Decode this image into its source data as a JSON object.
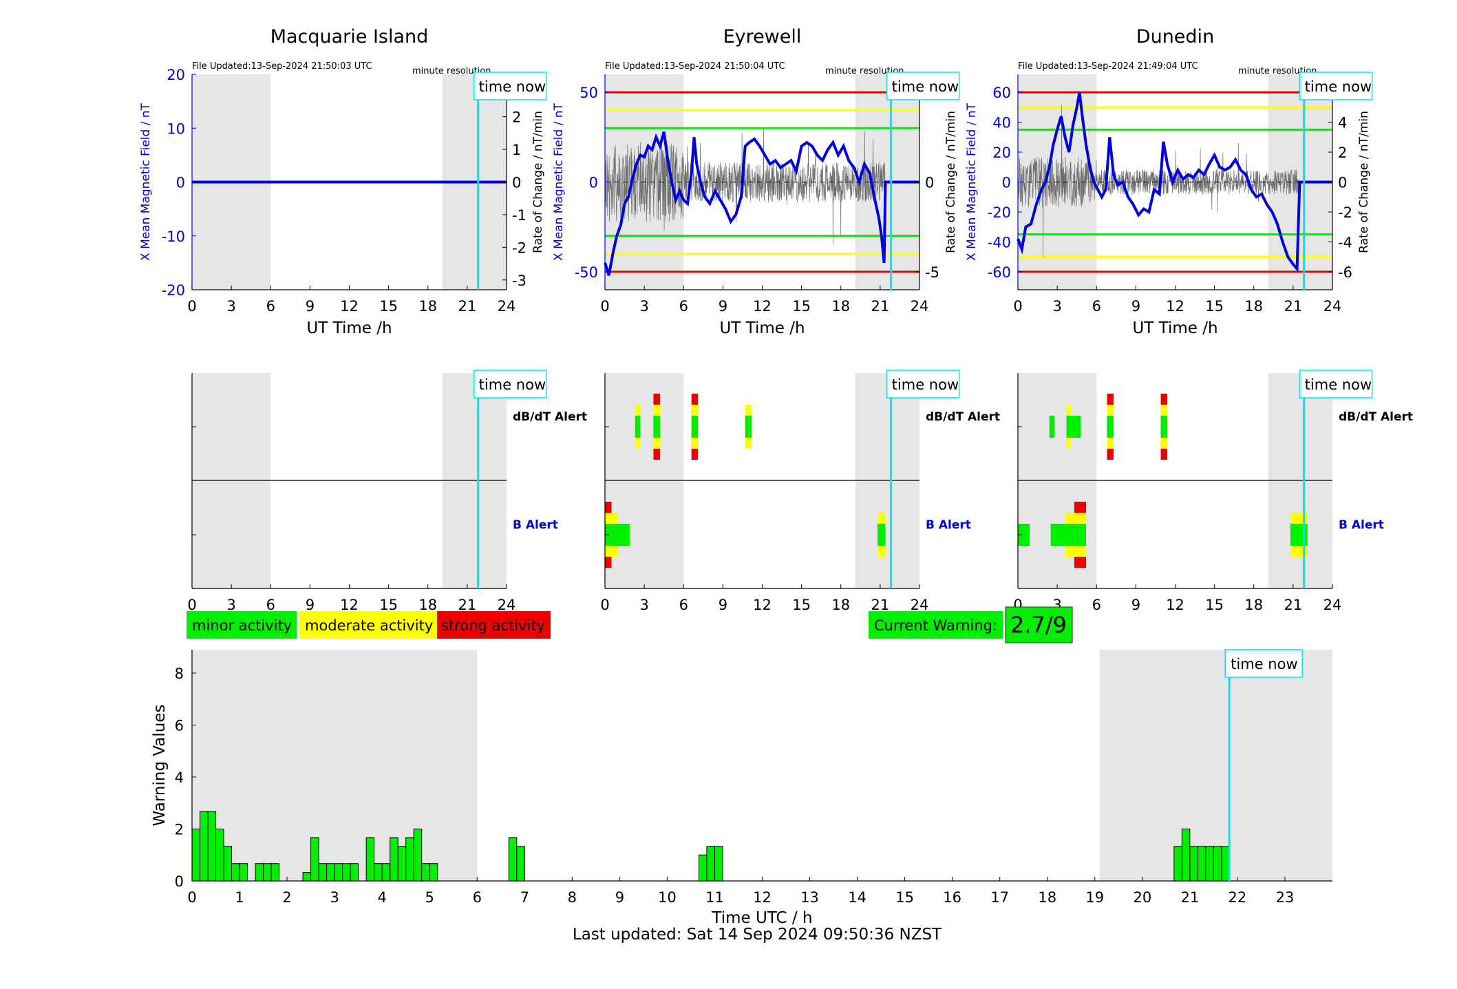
{
  "colors": {
    "shade": "#e6e6e6",
    "bfield": "#0000e6",
    "now_line": "#00e5ee",
    "green": "#00ee00",
    "yellow": "#ffff00",
    "red": "#ee0000",
    "bar_edge": "#000000",
    "rate_trace": "#6e6e6e"
  },
  "time_now_label": "time now",
  "time_now_hour": 21.83,
  "night_shading_hours": [
    [
      0,
      6
    ],
    [
      19.1,
      24
    ]
  ],
  "panels": [
    {
      "station": "Macquarie Island",
      "file_updated": "File Updated:13-Sep-2024 21:50:03 UTC",
      "resolution": "minute resolution",
      "left_ylabel": "X Mean Magnetic Field / nT",
      "right_ylabel": "Rate of Change / nT/min",
      "xlabel": "UT Time /h",
      "ylim": [
        -20,
        20
      ],
      "yticks": [
        -20,
        -10,
        0,
        10,
        20
      ],
      "rate_ylim": [
        -3.3,
        3.3
      ],
      "rate_yticks": [
        -3,
        -2,
        -1,
        0,
        1,
        2,
        3
      ],
      "thresholds": [],
      "b_trace": [
        [
          0,
          0
        ],
        [
          24,
          0
        ]
      ],
      "rate_noise": 0
    },
    {
      "station": "Eyrewell",
      "file_updated": "File Updated:13-Sep-2024 21:50:04 UTC",
      "resolution": "minute resolution",
      "left_ylabel": "X Mean Magnetic Field / nT",
      "right_ylabel": "Rate of Change / nT/min",
      "xlabel": "UT Time /h",
      "ylim": [
        -60,
        60
      ],
      "yticks": [
        -50,
        0,
        50
      ],
      "rate_ylim": [
        -6,
        6
      ],
      "rate_yticks": [
        -5,
        0,
        5
      ],
      "thresholds": [
        {
          "value": 50,
          "color": "red"
        },
        {
          "value": 40,
          "color": "yellow"
        },
        {
          "value": 30,
          "color": "green"
        },
        {
          "value": -30,
          "color": "green"
        },
        {
          "value": -40,
          "color": "yellow"
        },
        {
          "value": -50,
          "color": "red"
        }
      ],
      "b_trace": [
        [
          0,
          -45
        ],
        [
          0.3,
          -52
        ],
        [
          0.6,
          -40
        ],
        [
          0.9,
          -30
        ],
        [
          1.2,
          -24
        ],
        [
          1.5,
          -12
        ],
        [
          1.8,
          -8
        ],
        [
          2.1,
          2
        ],
        [
          2.4,
          10
        ],
        [
          2.7,
          15
        ],
        [
          3.0,
          14
        ],
        [
          3.3,
          20
        ],
        [
          3.6,
          18
        ],
        [
          3.9,
          25
        ],
        [
          4.2,
          20
        ],
        [
          4.5,
          28
        ],
        [
          4.8,
          12
        ],
        [
          5.1,
          0
        ],
        [
          5.4,
          -10
        ],
        [
          5.7,
          -5
        ],
        [
          6.0,
          -10
        ],
        [
          6.3,
          -12
        ],
        [
          6.6,
          5
        ],
        [
          6.8,
          25
        ],
        [
          7.0,
          10
        ],
        [
          7.3,
          0
        ],
        [
          7.6,
          -8
        ],
        [
          8.0,
          -12
        ],
        [
          8.4,
          -5
        ],
        [
          8.8,
          -10
        ],
        [
          9.2,
          -15
        ],
        [
          9.6,
          -22
        ],
        [
          10.0,
          -18
        ],
        [
          10.4,
          -8
        ],
        [
          10.7,
          20
        ],
        [
          11.0,
          22
        ],
        [
          11.4,
          24
        ],
        [
          11.8,
          20
        ],
        [
          12.2,
          15
        ],
        [
          12.6,
          10
        ],
        [
          13.0,
          12
        ],
        [
          13.4,
          8
        ],
        [
          13.8,
          10
        ],
        [
          14.2,
          12
        ],
        [
          14.6,
          6
        ],
        [
          15.0,
          20
        ],
        [
          15.4,
          22
        ],
        [
          15.8,
          20
        ],
        [
          16.2,
          15
        ],
        [
          16.6,
          12
        ],
        [
          17.0,
          18
        ],
        [
          17.4,
          22
        ],
        [
          17.8,
          15
        ],
        [
          18.2,
          20
        ],
        [
          18.6,
          12
        ],
        [
          19.0,
          8
        ],
        [
          19.4,
          0
        ],
        [
          19.8,
          10
        ],
        [
          20.2,
          5
        ],
        [
          20.6,
          -10
        ],
        [
          20.9,
          -20
        ],
        [
          21.1,
          -30
        ],
        [
          21.3,
          -45
        ],
        [
          21.4,
          0
        ],
        [
          24,
          0
        ]
      ],
      "rate_noise": 1.6
    },
    {
      "station": "Dunedin",
      "file_updated": "File Updated:13-Sep-2024 21:49:04 UTC",
      "resolution": "minute resolution",
      "left_ylabel": "X Mean Magnetic Field / nT",
      "right_ylabel": "Rate of Change / nT/min",
      "xlabel": "UT Time /h",
      "ylim": [
        -72,
        72
      ],
      "yticks": [
        -60,
        -40,
        -20,
        0,
        20,
        40,
        60
      ],
      "rate_ylim": [
        -7.2,
        7.2
      ],
      "rate_yticks": [
        -6,
        -4,
        -2,
        0,
        2,
        4,
        6
      ],
      "thresholds": [
        {
          "value": 60,
          "color": "red"
        },
        {
          "value": 50,
          "color": "yellow"
        },
        {
          "value": 35,
          "color": "green"
        },
        {
          "value": -35,
          "color": "green"
        },
        {
          "value": -50,
          "color": "yellow"
        },
        {
          "value": -60,
          "color": "red"
        }
      ],
      "b_trace": [
        [
          0,
          -38
        ],
        [
          0.3,
          -45
        ],
        [
          0.6,
          -30
        ],
        [
          1.0,
          -28
        ],
        [
          1.4,
          -15
        ],
        [
          1.8,
          -5
        ],
        [
          2.1,
          0
        ],
        [
          2.4,
          10
        ],
        [
          2.7,
          25
        ],
        [
          3.0,
          35
        ],
        [
          3.3,
          44
        ],
        [
          3.6,
          30
        ],
        [
          3.9,
          20
        ],
        [
          4.2,
          38
        ],
        [
          4.5,
          50
        ],
        [
          4.7,
          60
        ],
        [
          4.9,
          45
        ],
        [
          5.2,
          25
        ],
        [
          5.5,
          10
        ],
        [
          5.8,
          0
        ],
        [
          6.1,
          -5
        ],
        [
          6.4,
          -10
        ],
        [
          6.7,
          -5
        ],
        [
          7.0,
          30
        ],
        [
          7.3,
          5
        ],
        [
          7.6,
          -2
        ],
        [
          8.0,
          0
        ],
        [
          8.4,
          -10
        ],
        [
          8.8,
          -15
        ],
        [
          9.2,
          -22
        ],
        [
          9.6,
          -18
        ],
        [
          10.0,
          -20
        ],
        [
          10.4,
          -5
        ],
        [
          10.8,
          -8
        ],
        [
          11.1,
          27
        ],
        [
          11.4,
          12
        ],
        [
          11.8,
          0
        ],
        [
          12.2,
          8
        ],
        [
          12.6,
          2
        ],
        [
          13.0,
          5
        ],
        [
          13.4,
          3
        ],
        [
          13.8,
          8
        ],
        [
          14.2,
          5
        ],
        [
          14.6,
          12
        ],
        [
          15.0,
          18
        ],
        [
          15.4,
          10
        ],
        [
          15.8,
          8
        ],
        [
          16.2,
          10
        ],
        [
          16.6,
          15
        ],
        [
          17.0,
          8
        ],
        [
          17.4,
          5
        ],
        [
          17.8,
          -5
        ],
        [
          18.2,
          -10
        ],
        [
          18.6,
          -8
        ],
        [
          19.0,
          -15
        ],
        [
          19.4,
          -20
        ],
        [
          19.8,
          -28
        ],
        [
          20.2,
          -40
        ],
        [
          20.6,
          -50
        ],
        [
          21.0,
          -55
        ],
        [
          21.3,
          -58
        ],
        [
          21.5,
          0
        ],
        [
          24,
          0
        ]
      ],
      "rate_noise": 1.2
    }
  ],
  "alerts_xticks": [
    0,
    3,
    6,
    9,
    12,
    15,
    18,
    21,
    24
  ],
  "alert_rows": {
    "dbdt": "dB/dT Alert",
    "b": "B Alert"
  },
  "alerts": [
    {
      "station": "Macquarie Island",
      "dbdt": [],
      "b": []
    },
    {
      "station": "Eyrewell",
      "dbdt": [
        {
          "x0": 2.3,
          "x1": 2.7,
          "level": 2
        },
        {
          "x0": 3.7,
          "x1": 4.2,
          "level": 3
        },
        {
          "x0": 6.6,
          "x1": 7.1,
          "level": 3
        },
        {
          "x0": 10.7,
          "x1": 11.2,
          "level": 2
        }
      ],
      "b": [
        {
          "x0": 0.0,
          "x1": 0.5,
          "level": 3
        },
        {
          "x0": 0.5,
          "x1": 1.0,
          "level": 2
        },
        {
          "x0": 1.0,
          "x1": 1.9,
          "level": 1
        },
        {
          "x0": 20.8,
          "x1": 21.4,
          "level": 2
        }
      ]
    },
    {
      "station": "Dunedin",
      "dbdt": [
        {
          "x0": 2.4,
          "x1": 2.8,
          "level": 1
        },
        {
          "x0": 3.7,
          "x1": 4.0,
          "level": 2
        },
        {
          "x0": 4.0,
          "x1": 4.8,
          "level": 1
        },
        {
          "x0": 6.8,
          "x1": 7.3,
          "level": 3
        },
        {
          "x0": 10.9,
          "x1": 11.4,
          "level": 3
        }
      ],
      "b": [
        {
          "x0": 0.0,
          "x1": 0.9,
          "level": 1
        },
        {
          "x0": 2.5,
          "x1": 3.6,
          "level": 1
        },
        {
          "x0": 3.6,
          "x1": 4.3,
          "level": 2
        },
        {
          "x0": 4.3,
          "x1": 5.2,
          "level": 3
        },
        {
          "x0": 20.8,
          "x1": 22.1,
          "level": 2
        }
      ]
    }
  ],
  "legend": {
    "minor": "minor activity",
    "moderate": "moderate activity",
    "strong": "strong activity"
  },
  "current_warning": {
    "label": "Current Warning:",
    "value": "2.7/9"
  },
  "chart_data": {
    "type": "bar",
    "title": "",
    "xlabel": "Time UTC / h",
    "ylabel": "Warning Values",
    "xlim": [
      0,
      24
    ],
    "ylim": [
      0,
      8.9
    ],
    "yticks": [
      0,
      2,
      4,
      6,
      8
    ],
    "xticks": [
      0,
      1,
      2,
      3,
      4,
      5,
      6,
      7,
      8,
      9,
      10,
      11,
      12,
      13,
      14,
      15,
      16,
      17,
      18,
      19,
      20,
      21,
      22,
      23
    ],
    "bin_width_h": 0.1667,
    "bars": [
      [
        0.0,
        2.0
      ],
      [
        0.167,
        2.67
      ],
      [
        0.333,
        2.67
      ],
      [
        0.5,
        2.0
      ],
      [
        0.667,
        1.33
      ],
      [
        0.833,
        0.67
      ],
      [
        1.0,
        0.67
      ],
      [
        1.333,
        0.67
      ],
      [
        1.5,
        0.67
      ],
      [
        1.667,
        0.67
      ],
      [
        2.333,
        0.33
      ],
      [
        2.5,
        1.67
      ],
      [
        2.667,
        0.67
      ],
      [
        2.833,
        0.67
      ],
      [
        3.0,
        0.67
      ],
      [
        3.167,
        0.67
      ],
      [
        3.333,
        0.67
      ],
      [
        3.667,
        1.67
      ],
      [
        3.833,
        0.67
      ],
      [
        4.0,
        0.67
      ],
      [
        4.167,
        1.67
      ],
      [
        4.333,
        1.33
      ],
      [
        4.5,
        1.67
      ],
      [
        4.667,
        2.0
      ],
      [
        4.833,
        0.67
      ],
      [
        5.0,
        0.67
      ],
      [
        6.667,
        1.67
      ],
      [
        6.833,
        1.33
      ],
      [
        10.667,
        1.0
      ],
      [
        10.833,
        1.33
      ],
      [
        11.0,
        1.33
      ],
      [
        20.667,
        1.33
      ],
      [
        20.833,
        2.0
      ],
      [
        21.0,
        1.33
      ],
      [
        21.167,
        1.33
      ],
      [
        21.333,
        1.33
      ],
      [
        21.5,
        1.33
      ],
      [
        21.667,
        1.33
      ]
    ]
  },
  "last_updated": "Last updated: Sat 14 Sep 2024 09:50:36 NZST"
}
